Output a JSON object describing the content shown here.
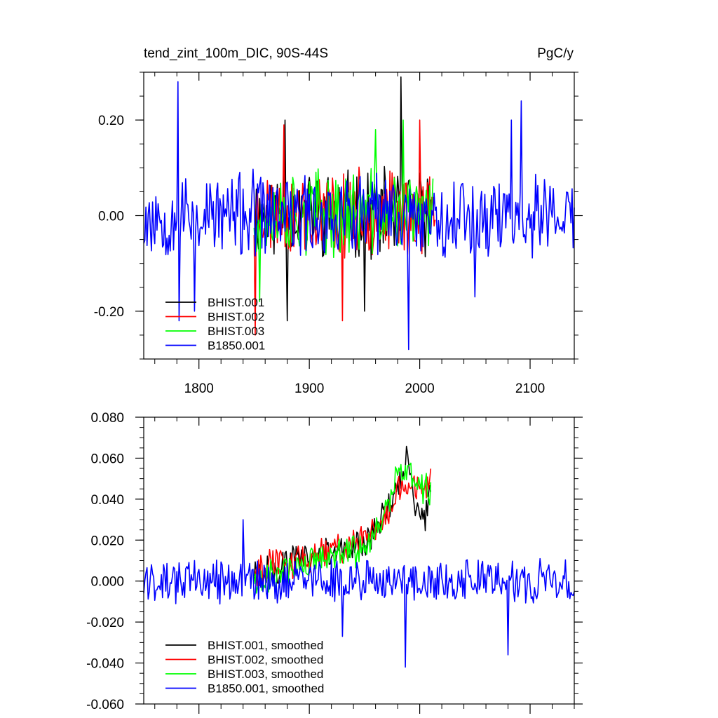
{
  "chart_data": [
    {
      "type": "line",
      "title": "tend_zint_100m_DIC, 90S-44S",
      "units": "PgC/y",
      "xlim": [
        1750,
        2140
      ],
      "ylim": [
        -0.3,
        0.3
      ],
      "x_ticks": [
        1800,
        1900,
        2000,
        2100
      ],
      "x_tick_labels": [
        "1800",
        "1900",
        "2000",
        "2100"
      ],
      "y_ticks": [
        -0.2,
        0.0,
        0.2
      ],
      "y_tick_labels": [
        "-0.20",
        "0.00",
        "0.20"
      ],
      "grid": false,
      "legend_position": "bottom-left",
      "series": [
        {
          "name": "BHIST.001",
          "color": "#000000",
          "x_start": 1850,
          "x_end": 2010,
          "amplitude": 0.075,
          "offset": 0.005,
          "seed": 11,
          "spikes": [
            [
              1983,
              0.29
            ],
            [
              1950,
              -0.2
            ],
            [
              1880,
              -0.22
            ],
            [
              1878,
              0.2
            ]
          ]
        },
        {
          "name": "BHIST.002",
          "color": "#ff0000",
          "x_start": 1850,
          "x_end": 2014,
          "amplitude": 0.075,
          "offset": 0.005,
          "seed": 23,
          "spikes": [
            [
              1930,
              -0.22
            ],
            [
              1877,
              0.19
            ],
            [
              2000,
              0.2
            ],
            [
              1851,
              -0.25
            ]
          ]
        },
        {
          "name": "BHIST.003",
          "color": "#00ff00",
          "x_start": 1850,
          "x_end": 2012,
          "amplitude": 0.075,
          "offset": 0.005,
          "seed": 37,
          "spikes": [
            [
              1985,
              0.2
            ],
            [
              1855,
              -0.18
            ],
            [
              1960,
              0.18
            ]
          ]
        },
        {
          "name": "B1850.001",
          "color": "#0000ff",
          "x_start": 1750,
          "x_end": 2140,
          "amplitude": 0.075,
          "offset": 0.0,
          "seed": 53,
          "spikes": [
            [
              1781,
              0.28
            ],
            [
              1782,
              -0.22
            ],
            [
              1990,
              -0.28
            ],
            [
              2083,
              0.2
            ],
            [
              2092,
              0.24
            ],
            [
              1796,
              -0.2
            ],
            [
              2050,
              -0.17
            ]
          ]
        }
      ]
    },
    {
      "type": "line",
      "xlim": [
        1750,
        2140
      ],
      "ylim": [
        -0.06,
        0.08
      ],
      "x_ticks": [
        1800,
        1900,
        2000,
        2100
      ],
      "y_ticks": [
        -0.06,
        -0.04,
        -0.02,
        0.0,
        0.02,
        0.04,
        0.06,
        0.08
      ],
      "y_tick_labels": [
        "-0.060",
        "-0.040",
        "-0.020",
        "0.000",
        "0.020",
        "0.040",
        "0.060",
        "0.080"
      ],
      "grid": false,
      "legend_position": "bottom-left",
      "series": [
        {
          "name": "BHIST.001, smoothed",
          "color": "#000000",
          "x_start": 1850,
          "x_end": 2010,
          "amplitude": 0.007,
          "seed": 101,
          "trend": [
            [
              1850,
              0.003
            ],
            [
              1900,
              0.012
            ],
            [
              1950,
              0.018
            ],
            [
              1965,
              0.03
            ],
            [
              1980,
              0.045
            ],
            [
              1988,
              0.06
            ],
            [
              1996,
              0.038
            ],
            [
              2004,
              0.03
            ],
            [
              2010,
              0.045
            ]
          ]
        },
        {
          "name": "BHIST.002, smoothed",
          "color": "#ff0000",
          "x_start": 1850,
          "x_end": 2010,
          "amplitude": 0.007,
          "seed": 113,
          "trend": [
            [
              1850,
              0.005
            ],
            [
              1900,
              0.012
            ],
            [
              1950,
              0.02
            ],
            [
              1965,
              0.028
            ],
            [
              1980,
              0.045
            ],
            [
              1990,
              0.045
            ],
            [
              2000,
              0.046
            ],
            [
              2010,
              0.048
            ]
          ]
        },
        {
          "name": "BHIST.003, smoothed",
          "color": "#00ff00",
          "x_start": 1850,
          "x_end": 2010,
          "amplitude": 0.007,
          "seed": 127,
          "trend": [
            [
              1850,
              0.0
            ],
            [
              1900,
              0.01
            ],
            [
              1950,
              0.016
            ],
            [
              1965,
              0.03
            ],
            [
              1980,
              0.05
            ],
            [
              1990,
              0.052
            ],
            [
              2000,
              0.046
            ],
            [
              2010,
              0.045
            ]
          ]
        },
        {
          "name": "B1850.001, smoothed",
          "color": "#0000ff",
          "x_start": 1750,
          "x_end": 2140,
          "amplitude": 0.009,
          "seed": 131,
          "trend": [
            [
              1750,
              0.0
            ],
            [
              2140,
              0.0
            ]
          ],
          "spikes": [
            [
              1987,
              -0.042
            ],
            [
              2080,
              -0.036
            ],
            [
              1840,
              0.03
            ],
            [
              1930,
              -0.027
            ]
          ]
        }
      ]
    }
  ]
}
